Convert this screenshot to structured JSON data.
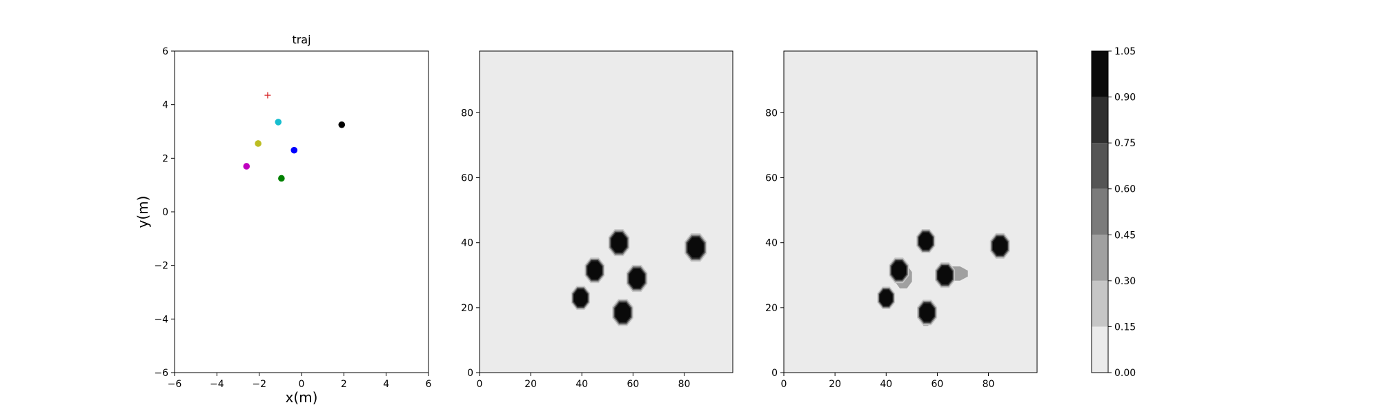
{
  "chart_data": [
    {
      "type": "scatter",
      "title": "traj",
      "xlabel": "x(m)",
      "ylabel": "y(m)",
      "xlim": [
        -6,
        6
      ],
      "ylim": [
        -6,
        6
      ],
      "xticks": [
        -6,
        -4,
        -2,
        0,
        2,
        4,
        6
      ],
      "yticks": [
        -6,
        -4,
        -2,
        0,
        2,
        4,
        6
      ],
      "grid": false,
      "points": [
        {
          "x": -1.6,
          "y": 4.35,
          "color": "#d62728",
          "marker": "plus"
        },
        {
          "x": -1.1,
          "y": 3.35,
          "color": "#17becf",
          "marker": "circle"
        },
        {
          "x": 1.9,
          "y": 3.25,
          "color": "#000000",
          "marker": "circle"
        },
        {
          "x": -2.05,
          "y": 2.55,
          "color": "#bcbd22",
          "marker": "circle"
        },
        {
          "x": -0.35,
          "y": 2.3,
          "color": "#0000ff",
          "marker": "circle"
        },
        {
          "x": -2.6,
          "y": 1.7,
          "color": "#bf00bf",
          "marker": "circle"
        },
        {
          "x": -0.95,
          "y": 1.25,
          "color": "#008000",
          "marker": "circle"
        }
      ]
    },
    {
      "type": "heatmap",
      "xlim": [
        0,
        99
      ],
      "ylim": [
        0,
        99
      ],
      "xticks": [
        0,
        20,
        40,
        60,
        80
      ],
      "yticks": [
        0,
        20,
        40,
        60,
        80
      ],
      "background_level": 0.0,
      "blobs": [
        {
          "x": 54.5,
          "y": 40,
          "r": 3.6,
          "level": 1.0
        },
        {
          "x": 84.5,
          "y": 38.5,
          "r": 3.8,
          "level": 1.0
        },
        {
          "x": 45,
          "y": 31.5,
          "r": 3.4,
          "level": 1.0
        },
        {
          "x": 61.5,
          "y": 29,
          "r": 3.6,
          "level": 1.0
        },
        {
          "x": 39.5,
          "y": 23,
          "r": 3.2,
          "level": 1.0
        },
        {
          "x": 56,
          "y": 18.5,
          "r": 3.6,
          "level": 1.0
        }
      ]
    },
    {
      "type": "heatmap",
      "xlim": [
        0,
        99
      ],
      "ylim": [
        0,
        99
      ],
      "xticks": [
        0,
        20,
        40,
        60,
        80
      ],
      "yticks": [
        0,
        20,
        40,
        60,
        80
      ],
      "background_level": 0.0,
      "blobs": [
        {
          "x": 55.5,
          "y": 40.5,
          "r": 3.2,
          "level": 1.0
        },
        {
          "x": 84.5,
          "y": 39,
          "r": 3.4,
          "level": 1.0
        },
        {
          "x": 45,
          "y": 31.5,
          "r": 3.4,
          "level": 1.0,
          "smear": [
            {
              "x": 48.5,
              "y": 27.5,
              "level": 0.3
            }
          ]
        },
        {
          "x": 63,
          "y": 30,
          "r": 3.4,
          "level": 1.0,
          "smear": [
            {
              "x": 70.5,
              "y": 31,
              "level": 0.3
            }
          ]
        },
        {
          "x": 40,
          "y": 23,
          "r": 3.0,
          "level": 1.0
        },
        {
          "x": 56,
          "y": 18.5,
          "r": 3.4,
          "level": 1.0,
          "smear": [
            {
              "x": 55,
              "y": 16,
              "level": 0.3
            }
          ]
        }
      ]
    }
  ],
  "colorbar": {
    "min": 0.0,
    "max": 1.05,
    "levels": [
      0.0,
      0.15,
      0.3,
      0.45,
      0.6,
      0.75,
      0.9,
      1.05
    ],
    "tick_labels": [
      "0.00",
      "0.15",
      "0.30",
      "0.45",
      "0.60",
      "0.75",
      "0.90",
      "1.05"
    ],
    "colors": [
      "#ebebeb",
      "#c6c6c6",
      "#a0a0a0",
      "#7b7b7b",
      "#555555",
      "#2f2f2f",
      "#0a0a0a"
    ]
  }
}
